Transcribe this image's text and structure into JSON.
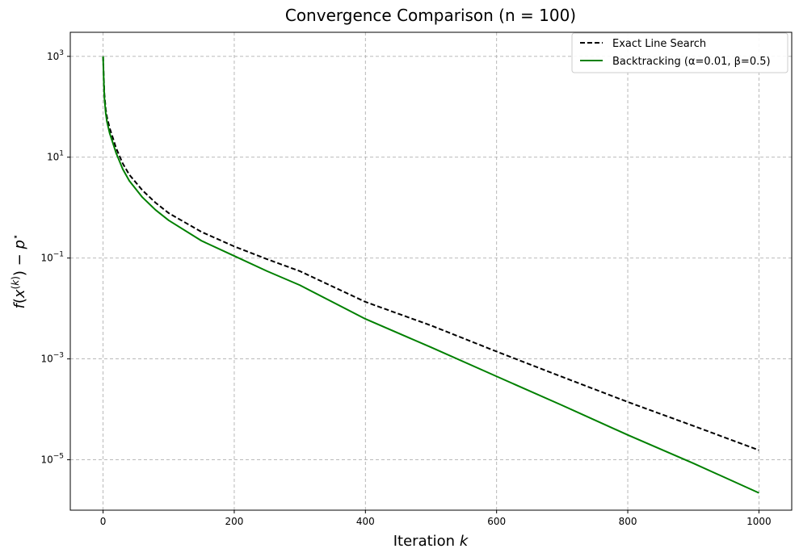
{
  "chart_data": {
    "type": "line",
    "title": "Convergence Comparison (n = 100)",
    "xlabel": "Iteration k",
    "ylabel": "f(x(k)) − p*",
    "yscale": "log",
    "xlim": [
      -50,
      1050
    ],
    "ylim": [
      1e-06,
      3000
    ],
    "xticks": [
      0,
      200,
      400,
      600,
      800,
      1000
    ],
    "yticks": [
      {
        "value": 1000,
        "mant": "10",
        "exp": "3"
      },
      {
        "value": 10,
        "mant": "10",
        "exp": "1"
      },
      {
        "value": 0.1,
        "mant": "10",
        "exp": "−1"
      },
      {
        "value": 0.001,
        "mant": "10",
        "exp": "−3"
      },
      {
        "value": 1e-05,
        "mant": "10",
        "exp": "−5"
      }
    ],
    "grid": true,
    "legend_position": "top-right",
    "series": [
      {
        "name": "Exact Line Search",
        "color": "#000000",
        "style": "dashed",
        "x": [
          0,
          1,
          2,
          4,
          6,
          10,
          15,
          20,
          30,
          40,
          60,
          80,
          100,
          150,
          200,
          250,
          300,
          400,
          500,
          600,
          700,
          800,
          900,
          1000
        ],
        "y": [
          1000,
          400,
          180,
          90,
          62,
          38,
          24,
          15,
          7.5,
          4.5,
          2.2,
          1.25,
          0.78,
          0.33,
          0.17,
          0.095,
          0.055,
          0.0135,
          0.0046,
          0.0014,
          0.00044,
          0.00014,
          4.7e-05,
          1.55e-05
        ]
      },
      {
        "name": "Backtracking (α=0.01, β=0.5)",
        "color": "#008000",
        "style": "solid",
        "x": [
          0,
          1,
          2,
          4,
          6,
          10,
          15,
          20,
          30,
          40,
          60,
          80,
          100,
          150,
          200,
          250,
          300,
          400,
          500,
          600,
          700,
          800,
          900,
          1000
        ],
        "y": [
          1000,
          350,
          150,
          75,
          50,
          30,
          19,
          12,
          5.8,
          3.4,
          1.6,
          0.9,
          0.56,
          0.22,
          0.11,
          0.055,
          0.029,
          0.0062,
          0.0017,
          0.00045,
          0.00012,
          3.1e-05,
          8.5e-06,
          2.2e-06
        ]
      }
    ]
  }
}
